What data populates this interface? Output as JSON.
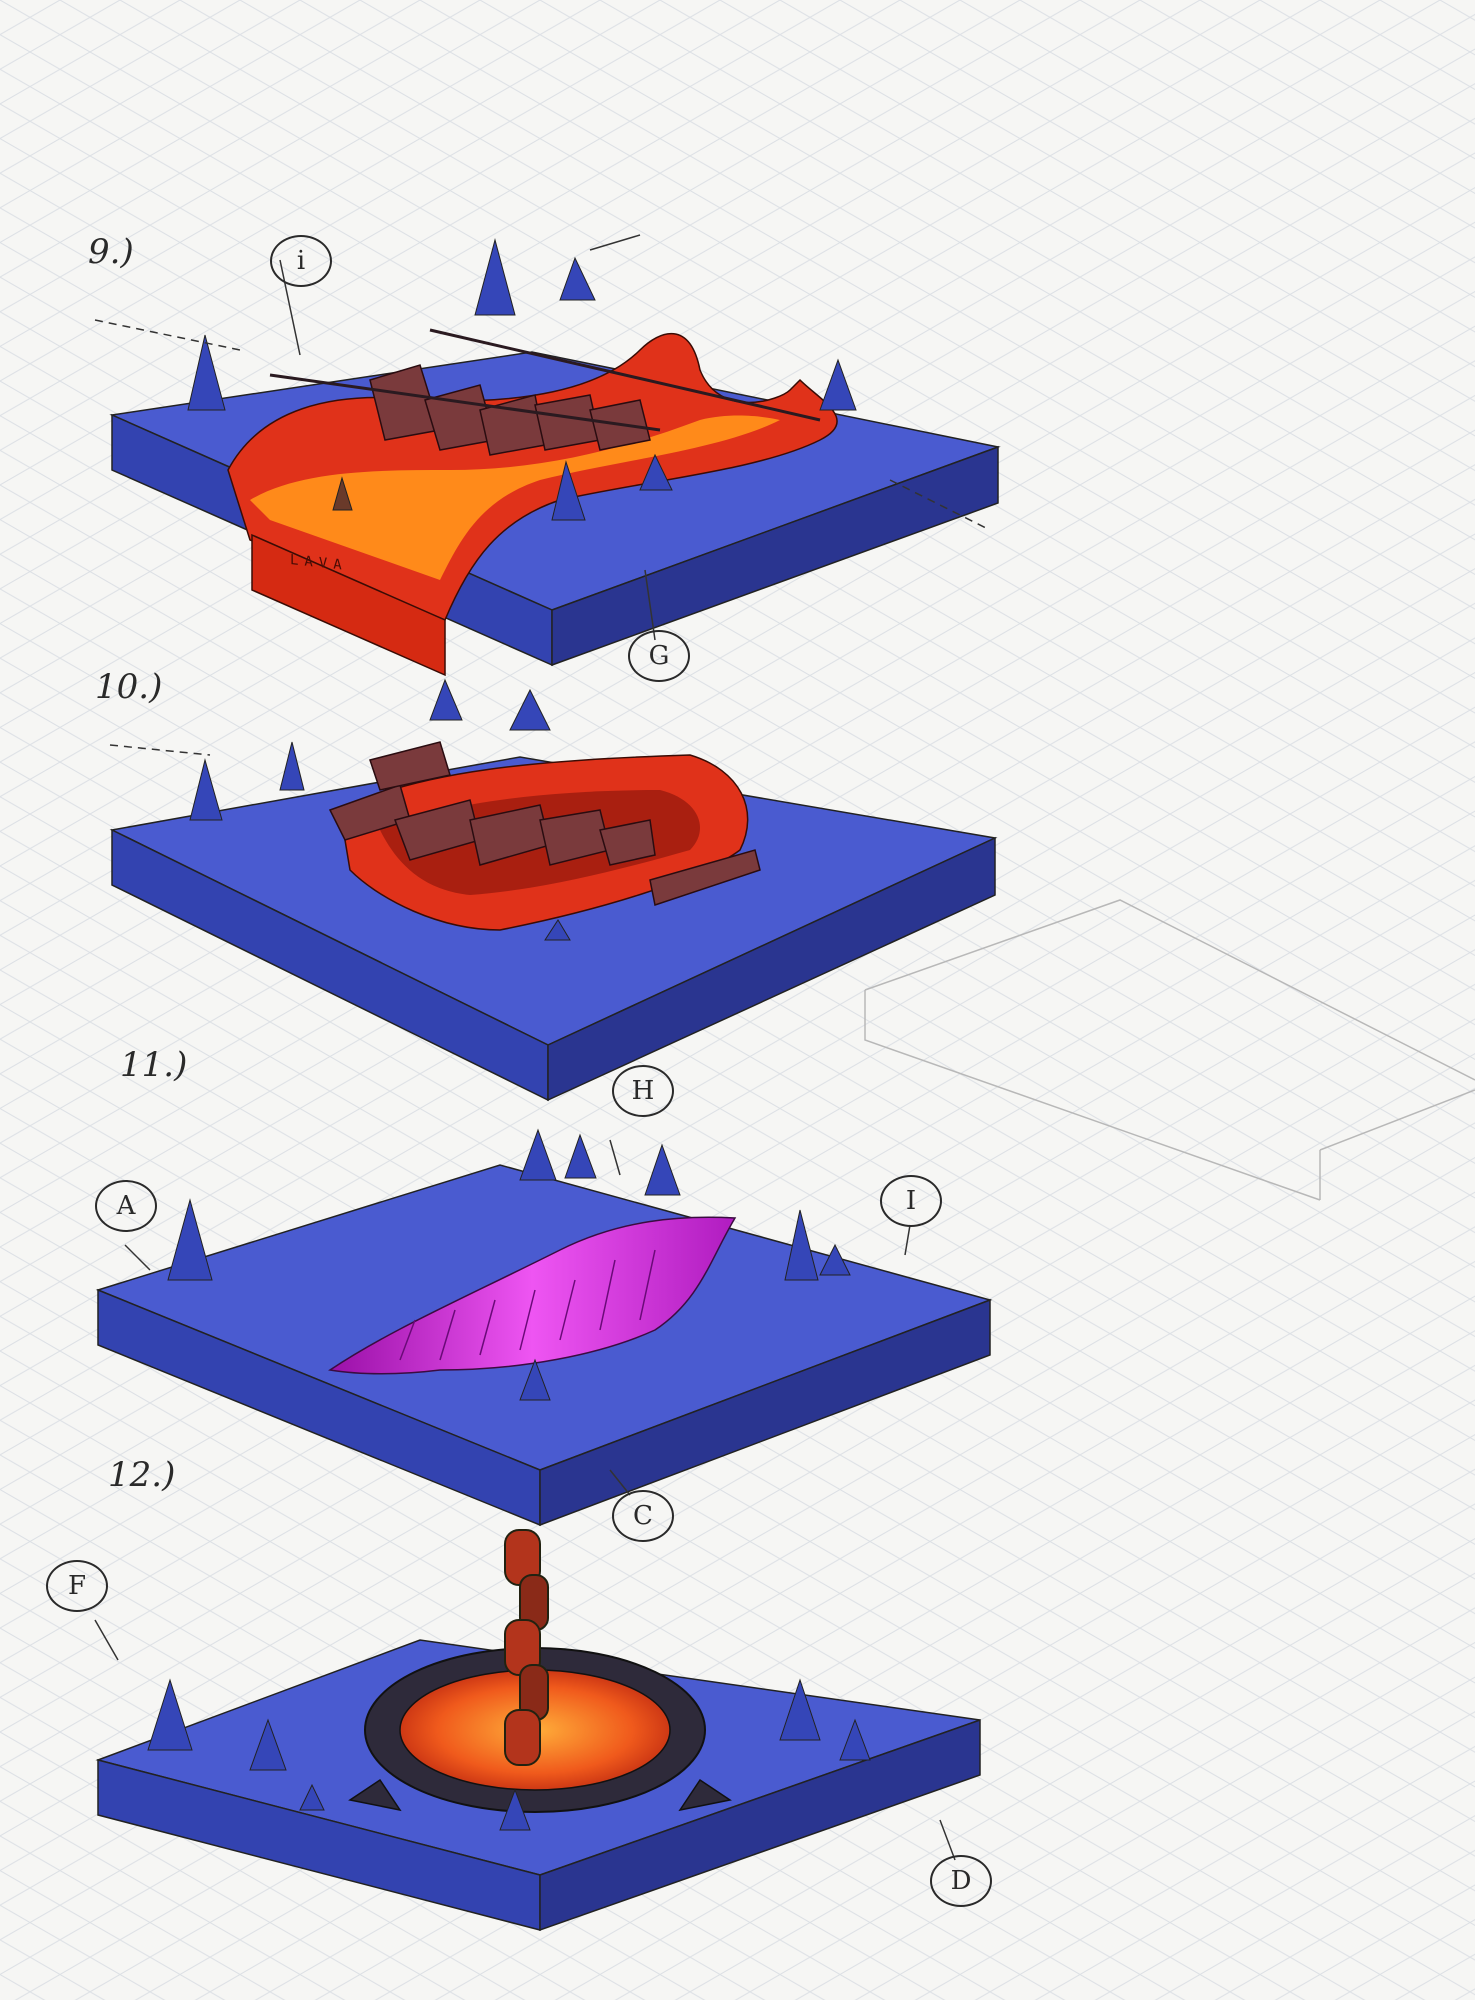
{
  "tiles": [
    {
      "number": "9.)",
      "callouts": [
        "i",
        "G"
      ],
      "tag": "LAVA"
    },
    {
      "number": "10.)",
      "callouts": []
    },
    {
      "number": "11.)",
      "callouts": [
        "H",
        "A",
        "I"
      ]
    },
    {
      "number": "12.)",
      "callouts": [
        "F",
        "C",
        "D"
      ]
    }
  ],
  "colors": {
    "paper": "#f6f6f4",
    "grid": "#d9dde3",
    "stone_top": "#4a5bd0",
    "stone_side": "#3343b0",
    "stone_dark": "#2a3590",
    "lava_red": "#e0321a",
    "lava_orange": "#ff8a1a",
    "wood": "#7a3a3c",
    "portal": "#cc22d8",
    "ink": "#2a2a2a"
  },
  "icons": [
    "spike-icon",
    "chain-icon",
    "bridge-plank-icon",
    "portal-icon",
    "lava-well-icon"
  ]
}
